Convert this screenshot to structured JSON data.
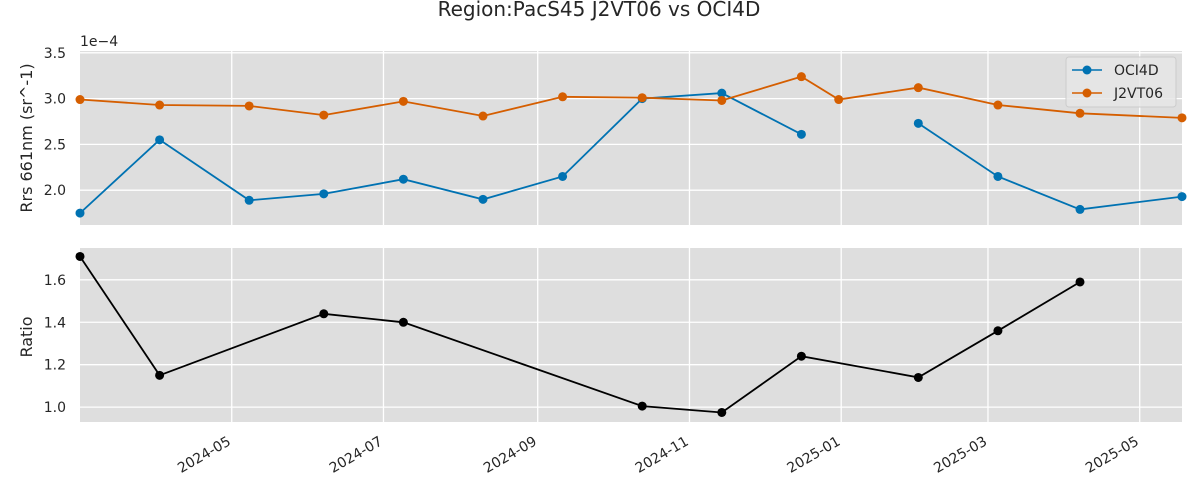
{
  "chart_data": [
    {
      "type": "line",
      "title": "Region:PacS45 J2VT06 vs OCI4D",
      "ylabel": "Rrs 661nm (sr^-1)",
      "y_scale_label": "1e−4",
      "y_scale_factor": 0.0001,
      "ylim": [
        1.62,
        3.52
      ],
      "yticks": [
        2.0,
        2.5,
        3.0,
        3.5
      ],
      "ytick_labels": [
        "2.0",
        "2.5",
        "3.0",
        "3.5"
      ],
      "xlim": [
        "2024-03-01",
        "2025-05-18"
      ],
      "grid": true,
      "legend_position": "top-right",
      "series": [
        {
          "name": "OCI4D",
          "color": "#0072b2",
          "points": [
            {
              "x": "2024-03-01",
              "y": 1.75
            },
            {
              "x": "2024-04-02",
              "y": 2.55
            },
            {
              "x": "2024-05-08",
              "y": 1.89
            },
            {
              "x": "2024-06-07",
              "y": 1.96
            },
            {
              "x": "2024-07-09",
              "y": 2.12
            },
            {
              "x": "2024-08-10",
              "y": 1.9
            },
            {
              "x": "2024-09-11",
              "y": 2.15
            },
            {
              "x": "2024-10-13",
              "y": 3.0
            },
            {
              "x": "2024-11-14",
              "y": 3.06
            },
            {
              "x": "2024-12-16",
              "y": 2.61
            },
            {
              "x": "2024-12-31",
              "y": null
            },
            {
              "x": "2025-02-01",
              "y": 2.73
            },
            {
              "x": "2025-03-05",
              "y": 2.15
            },
            {
              "x": "2025-04-07",
              "y": 1.79
            },
            {
              "x": "2025-05-18",
              "y": 1.93
            }
          ]
        },
        {
          "name": "J2VT06",
          "color": "#d55e00",
          "points": [
            {
              "x": "2024-03-01",
              "y": 2.99
            },
            {
              "x": "2024-04-02",
              "y": 2.93
            },
            {
              "x": "2024-05-08",
              "y": 2.92
            },
            {
              "x": "2024-06-07",
              "y": 2.82
            },
            {
              "x": "2024-07-09",
              "y": 2.97
            },
            {
              "x": "2024-08-10",
              "y": 2.81
            },
            {
              "x": "2024-09-11",
              "y": 3.02
            },
            {
              "x": "2024-10-13",
              "y": 3.01
            },
            {
              "x": "2024-11-14",
              "y": 2.98
            },
            {
              "x": "2024-12-16",
              "y": 3.24
            },
            {
              "x": "2024-12-31",
              "y": 2.99
            },
            {
              "x": "2025-02-01",
              "y": 3.12
            },
            {
              "x": "2025-03-05",
              "y": 2.93
            },
            {
              "x": "2025-04-07",
              "y": 2.84
            },
            {
              "x": "2025-05-18",
              "y": 2.79
            }
          ]
        }
      ]
    },
    {
      "type": "line",
      "title": "",
      "ylabel": "Ratio",
      "ylim": [
        0.93,
        1.75
      ],
      "yticks": [
        1.0,
        1.2,
        1.4,
        1.6
      ],
      "ytick_labels": [
        "1.0",
        "1.2",
        "1.4",
        "1.6"
      ],
      "xlim": [
        "2024-03-01",
        "2025-05-18"
      ],
      "xticks": [
        "2024-05-01",
        "2024-07-01",
        "2024-09-01",
        "2024-11-01",
        "2025-01-01",
        "2025-03-01",
        "2025-05-01"
      ],
      "xtick_labels": [
        "2024-05",
        "2024-07",
        "2024-09",
        "2024-11",
        "2025-01",
        "2025-03",
        "2025-05"
      ],
      "grid": true,
      "series": [
        {
          "color": "#000000",
          "points": [
            {
              "x": "2024-03-01",
              "y": 1.71
            },
            {
              "x": "2024-04-02",
              "y": 1.15
            },
            {
              "x": "2024-06-07",
              "y": 1.44
            },
            {
              "x": "2024-07-09",
              "y": 1.4
            },
            {
              "x": "2024-10-13",
              "y": 1.005
            },
            {
              "x": "2024-11-14",
              "y": 0.975
            },
            {
              "x": "2024-12-16",
              "y": 1.24
            },
            {
              "x": "2025-02-01",
              "y": 1.14
            },
            {
              "x": "2025-03-05",
              "y": 1.36
            },
            {
              "x": "2025-04-07",
              "y": 1.59
            }
          ]
        }
      ]
    }
  ]
}
